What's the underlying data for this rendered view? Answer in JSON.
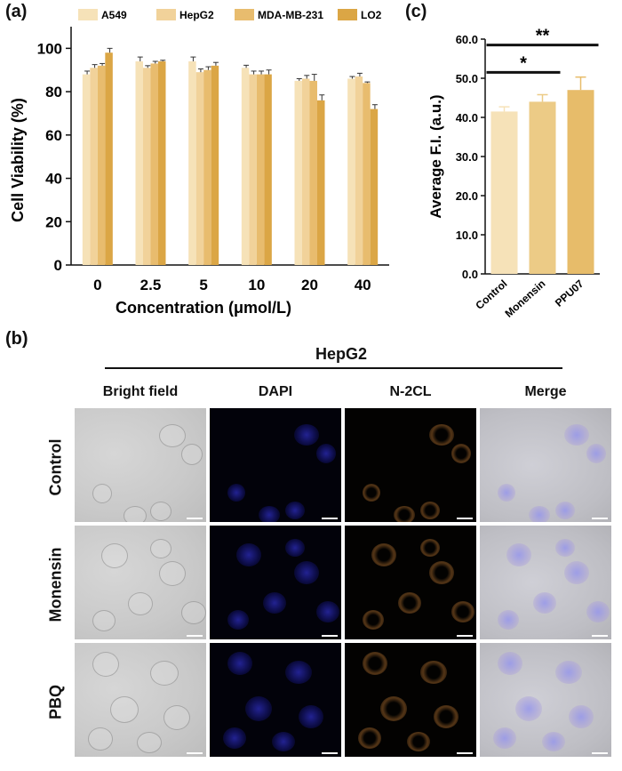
{
  "panels": {
    "a": "(a)",
    "b": "(b)",
    "c": "(c)"
  },
  "chart_data": [
    {
      "type": "bar",
      "xlabel": "Concentration (μmol/L)",
      "ylabel": "Cell Viability (%)",
      "ylim": [
        0,
        110
      ],
      "yticks": [
        0,
        20,
        40,
        60,
        80,
        100
      ],
      "categories": [
        "0",
        "2.5",
        "5",
        "10",
        "20",
        "40"
      ],
      "legend_position": "top",
      "series": [
        {
          "name": "A549",
          "color": "#f6e2b8",
          "values": [
            88,
            94,
            94,
            91,
            85,
            86
          ],
          "errors": [
            1.5,
            2.0,
            2.0,
            1.2,
            1.0,
            1.0
          ]
        },
        {
          "name": "HepG2",
          "color": "#f1d29a",
          "values": [
            91,
            91,
            89,
            88,
            86,
            87
          ],
          "errors": [
            1.5,
            1.0,
            1.5,
            1.5,
            1.5,
            1.5
          ]
        },
        {
          "name": "MDA-MB-231",
          "color": "#e8bc6e",
          "values": [
            92,
            93,
            90,
            88,
            85,
            84
          ],
          "errors": [
            1.0,
            1.0,
            1.5,
            1.5,
            3.0,
            0.5
          ]
        },
        {
          "name": "LO2",
          "color": "#dba645",
          "values": [
            98,
            94,
            92,
            88,
            76,
            72
          ],
          "errors": [
            2.0,
            0.5,
            1.5,
            2.0,
            2.5,
            2.0
          ]
        }
      ]
    },
    {
      "type": "bar",
      "xlabel": "",
      "ylabel": "Average F.I. (a.u.)",
      "ylim": [
        0,
        60
      ],
      "yticks": [
        0,
        10,
        20,
        30,
        40,
        50,
        60
      ],
      "categories": [
        "Control",
        "Monensin",
        "PPU07"
      ],
      "colors": [
        "#f6e2b8",
        "#eccb86",
        "#e7bc6a"
      ],
      "values": [
        41.5,
        44.0,
        47.0
      ],
      "errors": [
        1.2,
        1.8,
        3.3
      ],
      "significance": [
        {
          "from": "Control",
          "to": "Monensin",
          "label": "*"
        },
        {
          "from": "Control",
          "to": "PPU07",
          "label": "**"
        }
      ]
    }
  ],
  "microscopy": {
    "group_title": "HepG2",
    "columns": [
      "Bright field",
      "DAPI",
      "N-2CL",
      "Merge"
    ],
    "rows": [
      "Control",
      "Monensin",
      "PBQ"
    ]
  }
}
